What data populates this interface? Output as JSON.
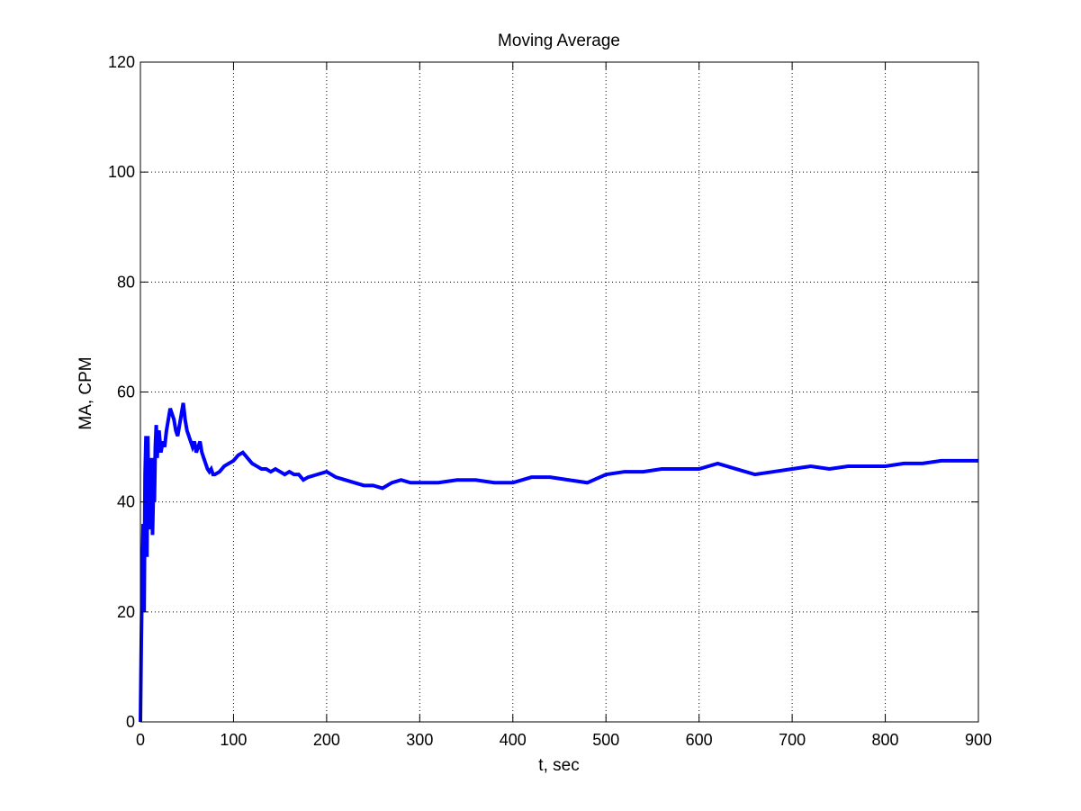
{
  "figure": {
    "background": "#ffffff"
  },
  "chart_data": {
    "type": "line",
    "title": "Moving Average",
    "xlabel": "t, sec",
    "ylabel": "MA, CPM",
    "xlim": [
      0,
      900
    ],
    "ylim": [
      0,
      120
    ],
    "xticks": [
      0,
      100,
      200,
      300,
      400,
      500,
      600,
      700,
      800,
      900
    ],
    "yticks": [
      0,
      20,
      40,
      60,
      80,
      100,
      120
    ],
    "xtick_labels": [
      "0",
      "100",
      "200",
      "300",
      "400",
      "500",
      "600",
      "700",
      "800",
      "900"
    ],
    "ytick_labels": [
      "0",
      "20",
      "40",
      "60",
      "80",
      "100",
      "120"
    ],
    "grid": true,
    "grid_style": "dotted",
    "line_color": "#0000ff",
    "series": [
      {
        "x": [
          0,
          1,
          2,
          3,
          4,
          5,
          6,
          7,
          8,
          9,
          10,
          11,
          12,
          13,
          14,
          15,
          16,
          17,
          18,
          19,
          20,
          22,
          24,
          26,
          28,
          30,
          32,
          34,
          36,
          38,
          40,
          42,
          44,
          46,
          48,
          50,
          52,
          54,
          56,
          58,
          60,
          62,
          64,
          66,
          68,
          70,
          72,
          74,
          76,
          78,
          80,
          85,
          90,
          95,
          100,
          105,
          110,
          115,
          120,
          125,
          130,
          135,
          140,
          145,
          150,
          155,
          160,
          165,
          170,
          175,
          180,
          190,
          200,
          210,
          220,
          230,
          240,
          250,
          260,
          270,
          280,
          290,
          300,
          320,
          340,
          360,
          380,
          400,
          420,
          440,
          460,
          480,
          500,
          520,
          540,
          560,
          580,
          600,
          620,
          640,
          660,
          680,
          700,
          720,
          740,
          760,
          780,
          800,
          820,
          840,
          860,
          880,
          900
        ],
        "y": [
          0,
          15,
          28,
          36,
          20,
          45,
          52,
          30,
          52,
          35,
          42,
          36,
          48,
          34,
          42,
          40,
          50,
          54,
          48,
          52,
          53,
          49,
          51,
          50,
          53,
          55,
          57,
          56,
          55,
          53,
          52,
          54,
          56,
          58,
          55,
          53,
          52,
          51,
          50,
          51,
          49,
          50,
          51,
          49,
          48,
          47,
          46,
          45.5,
          46,
          45,
          45,
          45.5,
          46.5,
          47,
          47.5,
          48.5,
          49,
          48,
          47,
          46.5,
          46,
          46,
          45.5,
          46,
          45.5,
          45,
          45.5,
          45,
          45,
          44,
          44.5,
          45,
          45.5,
          44.5,
          44,
          43.5,
          43,
          43,
          42.5,
          43.5,
          44,
          43.5,
          43.5,
          43.5,
          44,
          44,
          43.5,
          43.5,
          44.5,
          44.5,
          44,
          43.5,
          45,
          45.5,
          45.5,
          46,
          46,
          46,
          47,
          46,
          45,
          45.5,
          46,
          46.5,
          46,
          46.5,
          46.5,
          46.5,
          47,
          47,
          47.5,
          47.5,
          47.5
        ]
      }
    ]
  }
}
